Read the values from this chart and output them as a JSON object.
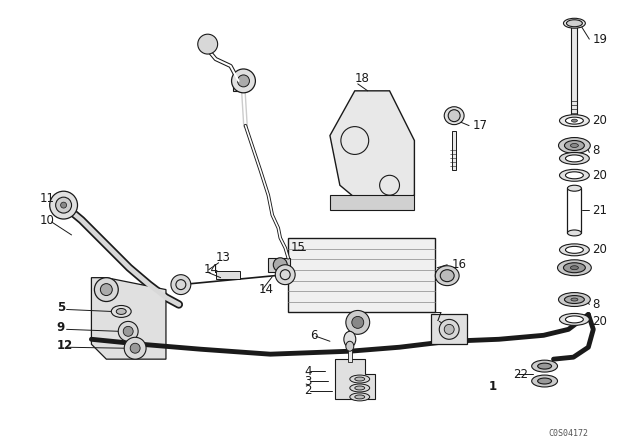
{
  "bg_color": "#ffffff",
  "line_color": "#1a1a1a",
  "fig_width": 6.4,
  "fig_height": 4.48,
  "dpi": 100,
  "watermark": "C0S04172"
}
